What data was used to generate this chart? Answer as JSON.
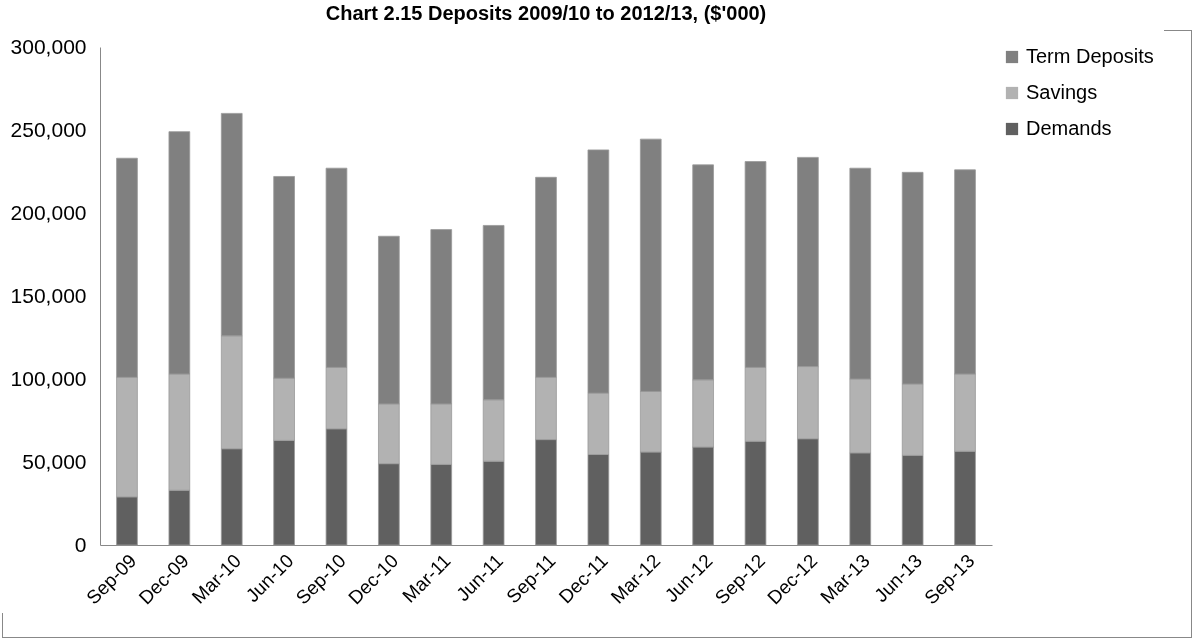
{
  "chart_data": {
    "type": "bar",
    "stacked": true,
    "title": "Chart 2.15 Deposits 2009/10 to 2012/13, ($'000)",
    "categories": [
      "Sep-09",
      "Dec-09",
      "Mar-10",
      "Jun-10",
      "Sep-10",
      "Dec-10",
      "Mar-11",
      "Jun-11",
      "Sep-11",
      "Dec-11",
      "Mar-12",
      "Jun-12",
      "Sep-12",
      "Dec-12",
      "Mar-13",
      "Jun-13",
      "Sep-13"
    ],
    "series": [
      {
        "name": "Demands",
        "color": "#606060",
        "values": [
          29000,
          33000,
          58000,
          63000,
          70000,
          49000,
          48500,
          50500,
          63500,
          54500,
          56000,
          59000,
          62500,
          64000,
          55500,
          54000,
          56500
        ]
      },
      {
        "name": "Savings",
        "color": "#b2b2b2",
        "values": [
          72000,
          70000,
          68000,
          37500,
          37000,
          36000,
          36500,
          37000,
          37500,
          37000,
          36500,
          40500,
          44500,
          43500,
          44500,
          43000,
          46500
        ]
      },
      {
        "name": "Term Deposits",
        "color": "#808080",
        "values": [
          132000,
          146000,
          134000,
          121500,
          120000,
          101000,
          105000,
          105000,
          120500,
          146500,
          152000,
          129500,
          124000,
          126000,
          127000,
          127500,
          123000
        ]
      }
    ],
    "ylim": [
      0,
      300000
    ],
    "yticks": [
      {
        "value": 0,
        "label": "0"
      },
      {
        "value": 50000,
        "label": "50,000"
      },
      {
        "value": 100000,
        "label": "100,000"
      },
      {
        "value": 150000,
        "label": "150,000"
      },
      {
        "value": 200000,
        "label": "200,000"
      },
      {
        "value": 250000,
        "label": "250,000"
      },
      {
        "value": 300000,
        "label": "300,000"
      }
    ],
    "grid": false,
    "legend": "right"
  }
}
